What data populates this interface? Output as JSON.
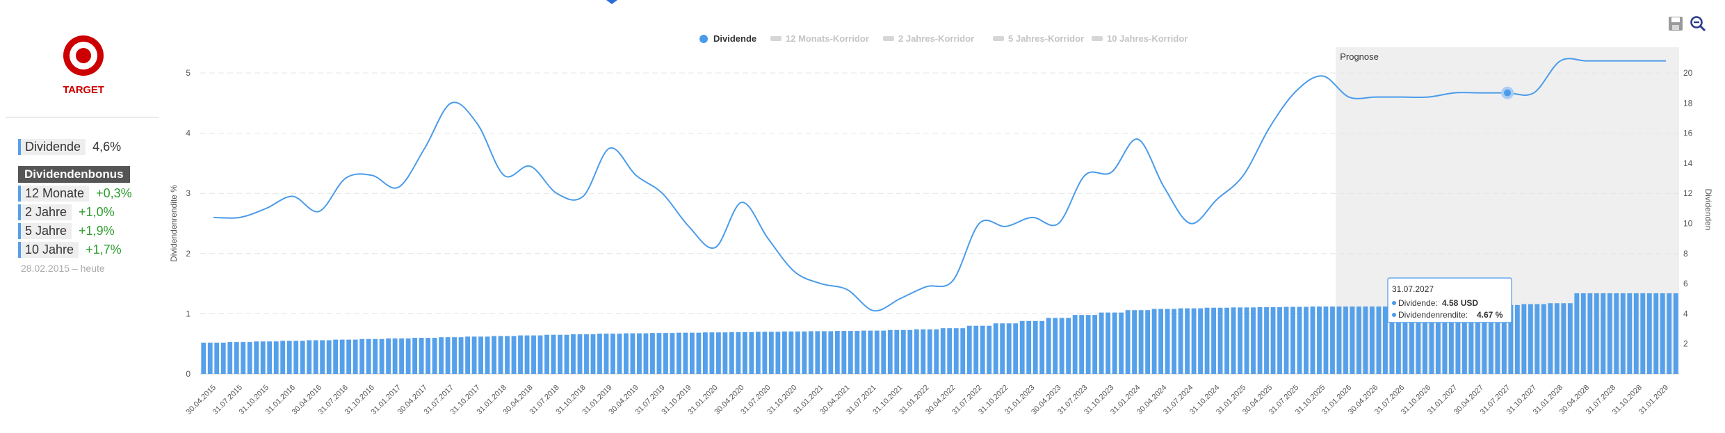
{
  "company": {
    "name": "TARGET"
  },
  "sidebar": {
    "dividend_label": "Dividende",
    "dividend_value": "4,6%",
    "bonus_title": "Dividendenbonus",
    "bonus": [
      {
        "label": "12 Monate",
        "value": "+0,3%"
      },
      {
        "label": "2 Jahre",
        "value": "+1,0%"
      },
      {
        "label": "5 Jahre",
        "value": "+1,9%"
      },
      {
        "label": "10 Jahre",
        "value": "+1,7%"
      }
    ],
    "period": "28.02.2015 – heute"
  },
  "toolbar": {
    "save_icon": "save-icon",
    "zoom_out_icon": "zoom-out-icon"
  },
  "colors": {
    "accent": "#4a9bea",
    "bar": "#55a0ea",
    "brand": "#cc0000",
    "forecast_bg": "#efefef",
    "positive": "#2e9c2e"
  },
  "chart_data": {
    "type": "bar+line",
    "legend": [
      "Dividende",
      "12 Monats-Korridor",
      "2 Jahres-Korridor",
      "5 Jahres-Korridor",
      "10 Jahres-Korridor"
    ],
    "legend_placement": "top-center",
    "ylabel_left": "Dividendenrendite %",
    "ylabel_right": "Dividenden",
    "yticks_left": [
      "0",
      "1",
      "2",
      "3",
      "4",
      "5"
    ],
    "yticks_right": [
      "2",
      "4",
      "6",
      "8",
      "10",
      "12",
      "14",
      "16",
      "18",
      "20"
    ],
    "ylim_left": [
      0,
      5
    ],
    "ylim_right": [
      0,
      20
    ],
    "grid": true,
    "forecast_label": "Prognose",
    "forecast_start": "31.01.2026",
    "x_ticks": [
      "30.04.2015",
      "31.07.2015",
      "31.10.2015",
      "31.01.2016",
      "30.04.2016",
      "31.07.2016",
      "31.10.2016",
      "31.01.2017",
      "30.04.2017",
      "31.07.2017",
      "31.10.2017",
      "31.01.2018",
      "30.04.2018",
      "31.07.2018",
      "31.10.2018",
      "31.01.2019",
      "30.04.2019",
      "31.07.2019",
      "31.10.2019",
      "31.01.2020",
      "30.04.2020",
      "31.07.2020",
      "31.10.2020",
      "31.01.2021",
      "30.04.2021",
      "31.07.2021",
      "31.10.2021",
      "31.01.2022",
      "30.04.2022",
      "31.07.2022",
      "31.10.2022",
      "31.01.2023",
      "30.04.2023",
      "31.07.2023",
      "31.10.2023",
      "31.01.2024",
      "30.04.2024",
      "31.07.2024",
      "31.10.2024",
      "31.01.2025",
      "30.04.2025",
      "31.07.2025",
      "31.10.2025",
      "31.01.2026",
      "30.04.2026",
      "31.07.2026",
      "31.10.2026",
      "31.01.2027",
      "30.04.2027",
      "31.07.2027",
      "31.10.2027",
      "31.01.2028",
      "30.04.2028",
      "31.07.2028",
      "31.10.2028",
      "31.01.2029"
    ],
    "series": [
      {
        "name": "Dividende",
        "axis": "right",
        "kind": "bar",
        "values": [
          2.08,
          2.12,
          2.16,
          2.2,
          2.24,
          2.28,
          2.32,
          2.36,
          2.4,
          2.44,
          2.48,
          2.52,
          2.56,
          2.6,
          2.64,
          2.68,
          2.7,
          2.72,
          2.74,
          2.76,
          2.78,
          2.8,
          2.82,
          2.84,
          2.86,
          2.88,
          2.92,
          2.96,
          3.04,
          3.2,
          3.36,
          3.52,
          3.72,
          3.92,
          4.08,
          4.24,
          4.32,
          4.36,
          4.4,
          4.42,
          4.44,
          4.46,
          4.48,
          4.48,
          4.48,
          4.48,
          4.48,
          4.5,
          4.52,
          4.58,
          4.64,
          4.7,
          5.36,
          5.36,
          5.36,
          5.36
        ]
      },
      {
        "name": "Dividendenrendite",
        "axis": "left",
        "kind": "line",
        "values": [
          2.6,
          2.6,
          2.75,
          2.95,
          2.7,
          3.25,
          3.3,
          3.1,
          3.75,
          4.5,
          4.15,
          3.3,
          3.45,
          3.0,
          2.95,
          3.75,
          3.3,
          3.0,
          2.45,
          2.1,
          2.85,
          2.25,
          1.7,
          1.5,
          1.4,
          1.05,
          1.25,
          1.45,
          1.55,
          2.5,
          2.45,
          2.6,
          2.5,
          3.3,
          3.35,
          3.9,
          3.1,
          2.5,
          2.9,
          3.3,
          4.1,
          4.7,
          4.95,
          4.6,
          4.6,
          4.6,
          4.6,
          4.67,
          4.67,
          4.67,
          4.67,
          5.2,
          5.2,
          5.2,
          5.2,
          5.2
        ]
      }
    ],
    "tooltip": {
      "date": "31.07.2027",
      "dividend_label": "Dividende:",
      "dividend_value": "4.58 USD",
      "yield_label": "Dividendenrendite:",
      "yield_value": "4.67 %"
    }
  }
}
